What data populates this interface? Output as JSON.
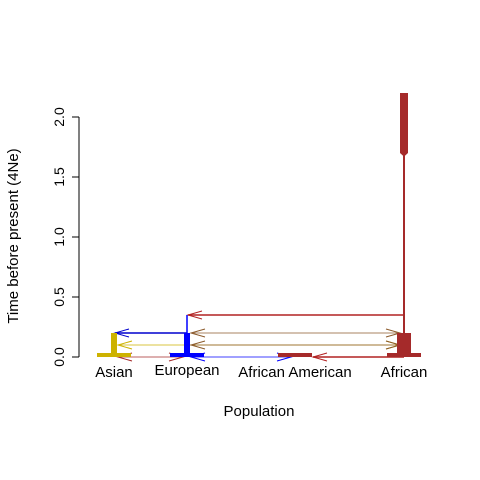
{
  "chart_data": {
    "type": "population-graph",
    "xlabel": "Population",
    "ylabel": "Time before present (4Ne)",
    "ylim": [
      0,
      2.2
    ],
    "yticks": [
      0.0,
      0.5,
      1.0,
      1.5,
      2.0
    ],
    "ytick_labels": [
      "0.0",
      "0.5",
      "1.0",
      "1.5",
      "2.0"
    ],
    "populations": [
      {
        "name": "Asian",
        "color": "#CDB200",
        "start": 0.0,
        "end": 0.2
      },
      {
        "name": "European",
        "color": "#0000FF",
        "start": 0.0,
        "end": 0.35
      },
      {
        "name": "African American",
        "color": "#A52A2A",
        "start": 0.0,
        "end": 0.0
      },
      {
        "name": "African",
        "color": "#A52A2A",
        "start": 0.0,
        "end": 2.2
      }
    ],
    "splits": [
      {
        "from": "European",
        "to": "Asian",
        "time": 0.2,
        "color": "#0000CD"
      },
      {
        "from": "African",
        "to": "European",
        "time": 0.35,
        "color": "#B22222"
      },
      {
        "from": "African",
        "to": "African American",
        "time": 0.0,
        "color": "#B22222"
      }
    ],
    "migrations": [
      {
        "between": [
          "European",
          "African"
        ],
        "time": 0.2,
        "color": "#8B5A2B"
      },
      {
        "between": [
          "Asian",
          "African"
        ],
        "time": 0.1,
        "color": "#CDB200"
      },
      {
        "between": [
          "European",
          "African"
        ],
        "time": 0.1,
        "color": "#8B5A2B"
      },
      {
        "between": [
          "Asian",
          "European"
        ],
        "time": 0.0,
        "color": "#A52A2A"
      },
      {
        "between": [
          "European",
          "African American"
        ],
        "time": 0.0,
        "color": "#0000FF"
      }
    ]
  }
}
